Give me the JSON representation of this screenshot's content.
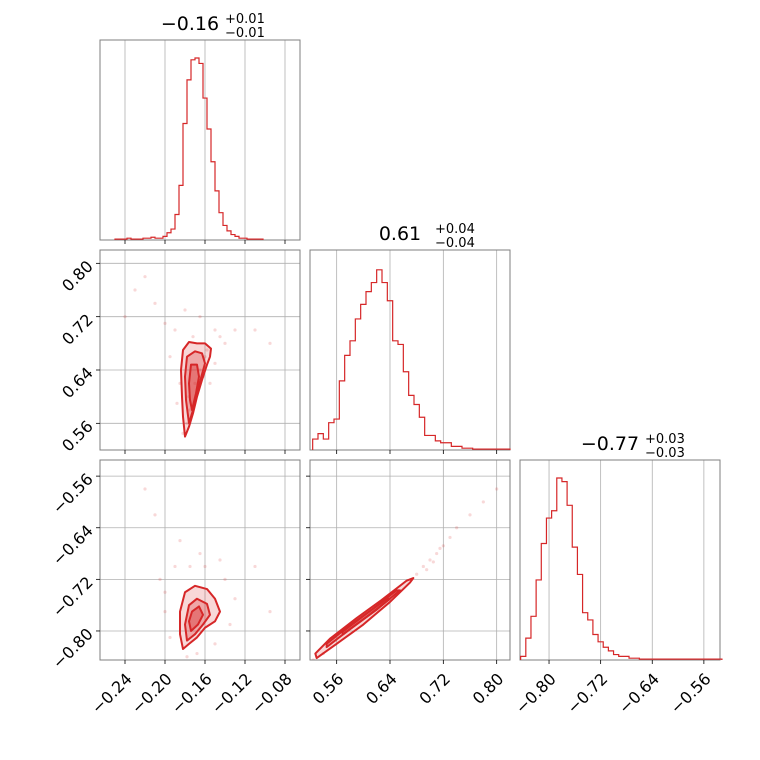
{
  "chart_data": {
    "type": "corner",
    "color": "#d62728",
    "parameters": [
      {
        "title": {
          "median": "−0.16",
          "plus": "+0.01",
          "minus": "−0.01"
        },
        "range": [
          -0.265,
          -0.065
        ],
        "ticks": [
          -0.24,
          -0.2,
          -0.16,
          -0.12,
          -0.08
        ],
        "tick_labels": [
          "−0.24",
          "−0.20",
          "−0.16",
          "−0.12",
          "−0.08"
        ],
        "hist_x": [
          -0.248,
          -0.244,
          -0.24,
          -0.236,
          -0.232,
          -0.228,
          -0.224,
          -0.22,
          -0.216,
          -0.212,
          -0.208,
          -0.204,
          -0.2,
          -0.196,
          -0.192,
          -0.188,
          -0.184,
          -0.18,
          -0.176,
          -0.172,
          -0.168,
          -0.164,
          -0.16,
          -0.156,
          -0.152,
          -0.148,
          -0.144,
          -0.14,
          -0.136,
          -0.132,
          -0.128,
          -0.124,
          -0.12,
          -0.116,
          -0.112,
          -0.108,
          -0.104
        ],
        "hist_y": [
          0.005,
          0.005,
          0.005,
          0.01,
          0.005,
          0.005,
          0.005,
          0.01,
          0.01,
          0.015,
          0.01,
          0.01,
          0.02,
          0.04,
          0.06,
          0.14,
          0.3,
          0.64,
          0.88,
          0.99,
          1.0,
          0.97,
          0.78,
          0.61,
          0.43,
          0.27,
          0.15,
          0.08,
          0.05,
          0.03,
          0.02,
          0.01,
          0.01,
          0.005,
          0.005,
          0.005,
          0.005
        ]
      },
      {
        "title": {
          "median": "0.61",
          "plus": "+0.04",
          "minus": "−0.04"
        },
        "range": [
          0.52,
          0.82
        ],
        "ticks": [
          0.56,
          0.64,
          0.72,
          0.8
        ],
        "tick_labels": [
          "0.56",
          "0.64",
          "0.72",
          "0.80"
        ],
        "hist_x": [
          0.528,
          0.536,
          0.544,
          0.552,
          0.56,
          0.568,
          0.576,
          0.584,
          0.592,
          0.6,
          0.608,
          0.616,
          0.624,
          0.632,
          0.64,
          0.648,
          0.656,
          0.664,
          0.672,
          0.68,
          0.688,
          0.696,
          0.704,
          0.712,
          0.72,
          0.728,
          0.736,
          0.744,
          0.752,
          0.76,
          0.768,
          0.776,
          0.784,
          0.792,
          0.8,
          0.808,
          0.816
        ],
        "hist_y": [
          0.06,
          0.09,
          0.06,
          0.15,
          0.17,
          0.38,
          0.52,
          0.6,
          0.72,
          0.8,
          0.87,
          0.92,
          0.99,
          0.92,
          0.82,
          0.6,
          0.58,
          0.43,
          0.3,
          0.25,
          0.18,
          0.08,
          0.08,
          0.05,
          0.04,
          0.04,
          0.02,
          0.02,
          0.01,
          0.01,
          0.005,
          0.005,
          0.005,
          0.005,
          0.005,
          0.005,
          0.005
        ]
      },
      {
        "title": {
          "median": "−0.77",
          "plus": "+0.03",
          "minus": "−0.03"
        },
        "range": [
          -0.845,
          -0.535
        ],
        "ticks": [
          -0.8,
          -0.72,
          -0.64,
          -0.56
        ],
        "tick_labels": [
          "−0.80",
          "−0.72",
          "−0.64",
          "−0.56"
        ],
        "hist_x": [
          -0.84,
          -0.832,
          -0.824,
          -0.816,
          -0.808,
          -0.8,
          -0.792,
          -0.784,
          -0.776,
          -0.768,
          -0.76,
          -0.752,
          -0.744,
          -0.736,
          -0.728,
          -0.72,
          -0.712,
          -0.704,
          -0.696,
          -0.688,
          -0.68,
          -0.672,
          -0.664,
          -0.656,
          -0.648,
          -0.64,
          -0.632,
          -0.624,
          -0.616,
          -0.608,
          -0.6,
          -0.592,
          -0.584,
          -0.576,
          -0.568,
          -0.56,
          -0.552,
          -0.544,
          -0.536
        ],
        "hist_y": [
          0.02,
          0.12,
          0.24,
          0.44,
          0.64,
          0.78,
          0.82,
          1.0,
          0.98,
          0.85,
          0.62,
          0.47,
          0.26,
          0.22,
          0.14,
          0.1,
          0.07,
          0.05,
          0.03,
          0.02,
          0.02,
          0.01,
          0.01,
          0.005,
          0.005,
          0.005,
          0.005,
          0.005,
          0.005,
          0.005,
          0.005,
          0.005,
          0.005,
          0.005,
          0.005,
          0.005,
          0.005,
          0.005,
          0.005
        ]
      }
    ],
    "contours": [
      {
        "x_param": 0,
        "y_param": 1,
        "levels": [
          [
            [
              -0.18,
              0.54
            ],
            [
              -0.176,
              0.555
            ],
            [
              -0.172,
              0.575
            ],
            [
              -0.168,
              0.6
            ],
            [
              -0.163,
              0.625
            ],
            [
              -0.158,
              0.648
            ],
            [
              -0.155,
              0.66
            ],
            [
              -0.154,
              0.672
            ],
            [
              -0.16,
              0.68
            ],
            [
              -0.168,
              0.68
            ],
            [
              -0.176,
              0.682
            ],
            [
              -0.182,
              0.67
            ],
            [
              -0.184,
              0.64
            ],
            [
              -0.183,
              0.6
            ],
            [
              -0.182,
              0.57
            ]
          ],
          [
            [
              -0.176,
              0.56
            ],
            [
              -0.172,
              0.58
            ],
            [
              -0.168,
              0.605
            ],
            [
              -0.164,
              0.628
            ],
            [
              -0.16,
              0.65
            ],
            [
              -0.163,
              0.665
            ],
            [
              -0.17,
              0.668
            ],
            [
              -0.178,
              0.66
            ],
            [
              -0.18,
              0.63
            ],
            [
              -0.179,
              0.595
            ]
          ],
          [
            [
              -0.173,
              0.58
            ],
            [
              -0.169,
              0.605
            ],
            [
              -0.166,
              0.63
            ],
            [
              -0.168,
              0.648
            ],
            [
              -0.174,
              0.648
            ],
            [
              -0.176,
              0.62
            ],
            [
              -0.175,
              0.595
            ]
          ]
        ],
        "points": [
          [
            -0.182,
            0.545
          ],
          [
            -0.178,
            0.56
          ],
          [
            -0.176,
            0.6
          ],
          [
            -0.17,
            0.62
          ],
          [
            -0.165,
            0.64
          ],
          [
            -0.16,
            0.66
          ],
          [
            -0.158,
            0.67
          ],
          [
            -0.172,
            0.69
          ],
          [
            -0.19,
            0.7
          ],
          [
            -0.15,
            0.7
          ],
          [
            -0.145,
            0.69
          ],
          [
            -0.14,
            0.68
          ],
          [
            -0.185,
            0.62
          ],
          [
            -0.155,
            0.62
          ],
          [
            -0.15,
            0.65
          ],
          [
            -0.195,
            0.66
          ],
          [
            -0.2,
            0.71
          ],
          [
            -0.21,
            0.74
          ],
          [
            -0.18,
            0.73
          ],
          [
            -0.165,
            0.72
          ],
          [
            -0.13,
            0.7
          ],
          [
            -0.24,
            0.72
          ],
          [
            -0.23,
            0.76
          ],
          [
            -0.22,
            0.78
          ],
          [
            -0.11,
            0.7
          ],
          [
            -0.095,
            0.68
          ],
          [
            -0.175,
            0.58
          ],
          [
            -0.168,
            0.61
          ],
          [
            -0.162,
            0.63
          ],
          [
            -0.188,
            0.59
          ]
        ]
      },
      {
        "x_param": 0,
        "y_param": 2,
        "levels": [
          [
            [
              -0.182,
              -0.828
            ],
            [
              -0.176,
              -0.82
            ],
            [
              -0.168,
              -0.81
            ],
            [
              -0.16,
              -0.795
            ],
            [
              -0.15,
              -0.785
            ],
            [
              -0.145,
              -0.77
            ],
            [
              -0.15,
              -0.75
            ],
            [
              -0.158,
              -0.735
            ],
            [
              -0.17,
              -0.73
            ],
            [
              -0.18,
              -0.74
            ],
            [
              -0.185,
              -0.77
            ],
            [
              -0.185,
              -0.805
            ]
          ],
          [
            [
              -0.178,
              -0.815
            ],
            [
              -0.17,
              -0.805
            ],
            [
              -0.162,
              -0.79
            ],
            [
              -0.155,
              -0.775
            ],
            [
              -0.158,
              -0.758
            ],
            [
              -0.168,
              -0.75
            ],
            [
              -0.176,
              -0.76
            ],
            [
              -0.18,
              -0.79
            ]
          ],
          [
            [
              -0.174,
              -0.8
            ],
            [
              -0.167,
              -0.79
            ],
            [
              -0.162,
              -0.775
            ],
            [
              -0.166,
              -0.762
            ],
            [
              -0.173,
              -0.77
            ],
            [
              -0.176,
              -0.785
            ]
          ]
        ],
        "points": [
          [
            -0.2,
            -0.74
          ],
          [
            -0.205,
            -0.72
          ],
          [
            -0.19,
            -0.7
          ],
          [
            -0.175,
            -0.7
          ],
          [
            -0.16,
            -0.7
          ],
          [
            -0.14,
            -0.72
          ],
          [
            -0.13,
            -0.75
          ],
          [
            -0.135,
            -0.79
          ],
          [
            -0.15,
            -0.82
          ],
          [
            -0.195,
            -0.81
          ],
          [
            -0.2,
            -0.77
          ],
          [
            -0.21,
            -0.62
          ],
          [
            -0.22,
            -0.58
          ],
          [
            -0.11,
            -0.7
          ],
          [
            -0.095,
            -0.77
          ],
          [
            -0.185,
            -0.66
          ],
          [
            -0.165,
            -0.68
          ],
          [
            -0.145,
            -0.69
          ],
          [
            -0.178,
            -0.84
          ],
          [
            -0.168,
            -0.835
          ]
        ]
      },
      {
        "x_param": 1,
        "y_param": 2,
        "levels": [
          [
            [
              0.53,
              -0.842
            ],
            [
              0.56,
              -0.82
            ],
            [
              0.6,
              -0.79
            ],
            [
              0.64,
              -0.755
            ],
            [
              0.67,
              -0.725
            ],
            [
              0.675,
              -0.718
            ],
            [
              0.665,
              -0.722
            ],
            [
              0.63,
              -0.75
            ],
            [
              0.59,
              -0.78
            ],
            [
              0.55,
              -0.812
            ],
            [
              0.528,
              -0.835
            ]
          ],
          [
            [
              0.545,
              -0.825
            ],
            [
              0.58,
              -0.797
            ],
            [
              0.62,
              -0.767
            ],
            [
              0.655,
              -0.737
            ],
            [
              0.65,
              -0.737
            ],
            [
              0.615,
              -0.765
            ],
            [
              0.575,
              -0.795
            ],
            [
              0.545,
              -0.82
            ]
          ],
          [
            [
              0.57,
              -0.805
            ],
            [
              0.605,
              -0.778
            ],
            [
              0.64,
              -0.75
            ],
            [
              0.635,
              -0.75
            ],
            [
              0.6,
              -0.777
            ],
            [
              0.568,
              -0.802
            ]
          ]
        ],
        "points": [
          [
            0.68,
            -0.712
          ],
          [
            0.69,
            -0.7
          ],
          [
            0.7,
            -0.69
          ],
          [
            0.71,
            -0.68
          ],
          [
            0.72,
            -0.668
          ],
          [
            0.73,
            -0.655
          ],
          [
            0.74,
            -0.64
          ],
          [
            0.76,
            -0.62
          ],
          [
            0.78,
            -0.6
          ],
          [
            0.8,
            -0.58
          ],
          [
            0.525,
            -0.845
          ],
          [
            0.54,
            -0.835
          ],
          [
            0.695,
            -0.705
          ],
          [
            0.705,
            -0.693
          ],
          [
            0.715,
            -0.672
          ]
        ]
      }
    ],
    "grid": true
  }
}
